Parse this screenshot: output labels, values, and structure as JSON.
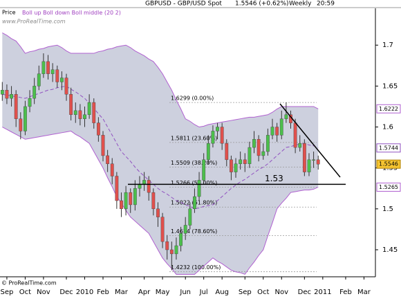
{
  "chart_data": {
    "type": "candlestick",
    "header": {
      "symbol": "GBPUSD - GBP/USD Spot",
      "last": "1.5546 (+0.62%)",
      "period": "Weekly",
      "time": "20:59"
    },
    "price_label": "Price",
    "indicator_params": "(20 2)",
    "watermark": "www.ProRealTime.com",
    "copyright": "© ProRealTime.com",
    "categories": [
      null,
      "Sep",
      null,
      null,
      null,
      "Oct",
      null,
      null,
      null,
      "Nov",
      null,
      null,
      null,
      null,
      "Dec",
      null,
      null,
      null,
      "2010",
      null,
      null,
      null,
      "Feb",
      null,
      null,
      null,
      "Mar",
      null,
      null,
      null,
      null,
      "Apr",
      null,
      null,
      null,
      "May",
      null,
      null,
      null,
      null,
      "Jun",
      null,
      null,
      null,
      "Jul",
      null,
      null,
      null,
      "Aug",
      null,
      null,
      null,
      null,
      "Sep",
      null,
      null,
      null,
      "Oct",
      null,
      null,
      null,
      "Nov",
      null,
      null,
      null,
      null,
      "Dec",
      null,
      null,
      null,
      "2011",
      null,
      null,
      null,
      null,
      "Feb",
      null,
      null,
      null,
      "Mar",
      null,
      null
    ],
    "ohlc": {
      "up_color": "#4cbf4c",
      "down_color": "#e0504c",
      "open": [
        1.64,
        1.645,
        1.635,
        1.64,
        1.61,
        1.595,
        1.625,
        1.635,
        1.65,
        1.665,
        1.68,
        1.665,
        1.67,
        1.655,
        1.66,
        1.64,
        1.615,
        1.62,
        1.61,
        1.615,
        1.63,
        1.605,
        1.59,
        1.565,
        1.555,
        1.54,
        1.51,
        1.5,
        1.52,
        1.505,
        1.525,
        1.53,
        1.535,
        1.52,
        1.5,
        1.49,
        1.46,
        1.45,
        1.445,
        1.455,
        1.47,
        1.48,
        1.5,
        1.515,
        1.535,
        1.56,
        1.58,
        1.595,
        1.6,
        1.58,
        1.56,
        1.545,
        1.555,
        1.56,
        1.555,
        1.575,
        1.585,
        1.565,
        1.57,
        1.59,
        1.6,
        1.59,
        1.61,
        1.615,
        1.605,
        1.575,
        1.58,
        1.545,
        1.56,
        1.56,
        null,
        null,
        null,
        null,
        null,
        null,
        null,
        null,
        null,
        null,
        null,
        null
      ],
      "high": [
        1.655,
        1.652,
        1.65,
        1.645,
        1.618,
        1.632,
        1.645,
        1.66,
        1.675,
        1.69,
        1.688,
        1.678,
        1.675,
        1.668,
        1.665,
        1.648,
        1.63,
        1.628,
        1.625,
        1.64,
        1.635,
        1.612,
        1.595,
        1.572,
        1.562,
        1.545,
        1.52,
        1.528,
        1.525,
        1.535,
        1.54,
        1.545,
        1.54,
        1.525,
        1.508,
        1.495,
        1.468,
        1.46,
        1.465,
        1.478,
        1.49,
        1.508,
        1.525,
        1.545,
        1.568,
        1.59,
        1.602,
        1.605,
        1.605,
        1.585,
        1.565,
        1.562,
        1.57,
        1.568,
        1.582,
        1.595,
        1.59,
        1.58,
        1.598,
        1.61,
        1.605,
        1.62,
        1.63,
        1.62,
        1.61,
        1.59,
        1.585,
        1.568,
        1.57,
        1.565,
        null,
        null,
        null,
        null,
        null,
        null,
        null,
        null,
        null,
        null,
        null,
        null
      ],
      "low": [
        1.632,
        1.628,
        1.625,
        1.6,
        1.585,
        1.59,
        1.618,
        1.628,
        1.645,
        1.66,
        1.658,
        1.655,
        1.648,
        1.645,
        1.632,
        1.608,
        1.605,
        1.602,
        1.6,
        1.61,
        1.598,
        1.582,
        1.558,
        1.545,
        1.53,
        1.5,
        1.49,
        1.492,
        1.495,
        1.498,
        1.515,
        1.522,
        1.51,
        1.492,
        1.478,
        1.452,
        1.438,
        1.425,
        1.438,
        1.448,
        1.462,
        1.475,
        1.495,
        1.51,
        1.53,
        1.555,
        1.575,
        1.585,
        1.572,
        1.552,
        1.535,
        1.538,
        1.548,
        1.545,
        1.55,
        1.568,
        1.558,
        1.56,
        1.565,
        1.585,
        1.582,
        1.585,
        1.605,
        1.598,
        1.568,
        1.57,
        1.54,
        1.54,
        1.55,
        1.548,
        null,
        null,
        null,
        null,
        null,
        null,
        null,
        null,
        null,
        null,
        null,
        null
      ],
      "close": [
        1.645,
        1.635,
        1.64,
        1.61,
        1.595,
        1.625,
        1.635,
        1.65,
        1.665,
        1.68,
        1.665,
        1.67,
        1.655,
        1.66,
        1.64,
        1.615,
        1.62,
        1.61,
        1.615,
        1.63,
        1.605,
        1.59,
        1.565,
        1.555,
        1.54,
        1.51,
        1.5,
        1.52,
        1.505,
        1.525,
        1.53,
        1.535,
        1.52,
        1.5,
        1.49,
        1.46,
        1.45,
        1.445,
        1.455,
        1.47,
        1.48,
        1.5,
        1.515,
        1.535,
        1.56,
        1.58,
        1.595,
        1.6,
        1.58,
        1.56,
        1.545,
        1.555,
        1.56,
        1.555,
        1.575,
        1.585,
        1.565,
        1.57,
        1.59,
        1.6,
        1.59,
        1.61,
        1.615,
        1.605,
        1.575,
        1.58,
        1.545,
        1.56,
        1.56,
        1.5546,
        null,
        null,
        null,
        null,
        null,
        null,
        null,
        null,
        null,
        null,
        null,
        null
      ]
    },
    "band_fill": "#cdd0de",
    "series": [
      {
        "name": "Boll up",
        "color": "#b060d0",
        "dash": false,
        "values": [
          1.715,
          1.712,
          1.708,
          1.705,
          1.698,
          1.69,
          1.692,
          1.693,
          1.695,
          1.696,
          1.698,
          1.699,
          1.7,
          1.697,
          1.693,
          1.69,
          1.69,
          1.69,
          1.69,
          1.69,
          1.69,
          1.692,
          1.693,
          1.695,
          1.696,
          1.698,
          1.699,
          1.7,
          1.697,
          1.693,
          1.69,
          1.687,
          1.683,
          1.68,
          1.673,
          1.665,
          1.655,
          1.645,
          1.633,
          1.622,
          1.61,
          1.607,
          1.603,
          1.6,
          1.601,
          1.603,
          1.604,
          1.605,
          1.606,
          1.607,
          1.608,
          1.609,
          1.61,
          1.611,
          1.612,
          1.612,
          1.613,
          1.614,
          1.615,
          1.618,
          1.622,
          1.625,
          1.625,
          1.625,
          1.625,
          1.625,
          1.625,
          1.625,
          1.625,
          1.6222,
          null,
          null,
          null,
          null,
          null,
          null,
          null,
          null,
          null,
          null,
          null,
          null
        ]
      },
      {
        "name": "Boll down",
        "color": "#b060d0",
        "dash": false,
        "values": [
          1.6,
          1.597,
          1.594,
          1.591,
          1.588,
          1.585,
          1.586,
          1.587,
          1.588,
          1.589,
          1.59,
          1.591,
          1.592,
          1.593,
          1.594,
          1.595,
          1.591,
          1.588,
          1.584,
          1.58,
          1.57,
          1.56,
          1.55,
          1.538,
          1.527,
          1.515,
          1.507,
          1.498,
          1.49,
          1.485,
          1.48,
          1.475,
          1.47,
          1.46,
          1.45,
          1.44,
          1.433,
          1.427,
          1.42,
          1.42,
          1.42,
          1.42,
          1.42,
          1.425,
          1.43,
          1.435,
          1.44,
          1.436,
          1.433,
          1.429,
          1.425,
          1.423,
          1.422,
          1.42,
          1.428,
          1.435,
          1.443,
          1.45,
          1.467,
          1.483,
          1.5,
          1.507,
          1.513,
          1.52,
          1.521,
          1.522,
          1.523,
          1.523,
          1.524,
          1.5265,
          null,
          null,
          null,
          null,
          null,
          null,
          null,
          null,
          null,
          null,
          null,
          null
        ]
      },
      {
        "name": "Boll middle",
        "color": "#9050c0",
        "dash": true,
        "values": [
          1.64,
          1.639,
          1.638,
          1.637,
          1.636,
          1.635,
          1.637,
          1.639,
          1.641,
          1.643,
          1.645,
          1.646,
          1.648,
          1.649,
          1.65,
          1.646,
          1.643,
          1.639,
          1.635,
          1.629,
          1.623,
          1.616,
          1.61,
          1.6,
          1.59,
          1.58,
          1.57,
          1.564,
          1.558,
          1.551,
          1.545,
          1.54,
          1.535,
          1.53,
          1.525,
          1.521,
          1.518,
          1.514,
          1.51,
          1.508,
          1.505,
          1.503,
          1.5,
          1.501,
          1.503,
          1.504,
          1.505,
          1.51,
          1.515,
          1.52,
          1.525,
          1.529,
          1.533,
          1.536,
          1.54,
          1.544,
          1.548,
          1.551,
          1.555,
          1.56,
          1.565,
          1.57,
          1.575,
          1.576,
          1.578,
          1.579,
          1.58,
          1.578,
          1.577,
          1.5744,
          null,
          null,
          null,
          null,
          null,
          null,
          null,
          null,
          null,
          null,
          null,
          null
        ]
      }
    ],
    "fib_levels": [
      {
        "value": 1.6299,
        "label": "1.6299 (0.00%)"
      },
      {
        "value": 1.5811,
        "label": "1.5811 (23.60%)"
      },
      {
        "value": 1.5509,
        "label": "1.5509 (38.20%)"
      },
      {
        "value": 1.5266,
        "label": "1.5266 (50.00%)"
      },
      {
        "value": 1.5022,
        "label": "1.5022 (61.80%)"
      },
      {
        "value": 1.4674,
        "label": "1.4674 (78.60%)"
      },
      {
        "value": 1.4232,
        "label": "1.4232 (100.00%)"
      }
    ],
    "support_level": 1.53,
    "ylim": [
      1.417,
      1.745
    ],
    "yticks": [
      1.45,
      1.5,
      1.55,
      1.6,
      1.65,
      1.7
    ]
  }
}
